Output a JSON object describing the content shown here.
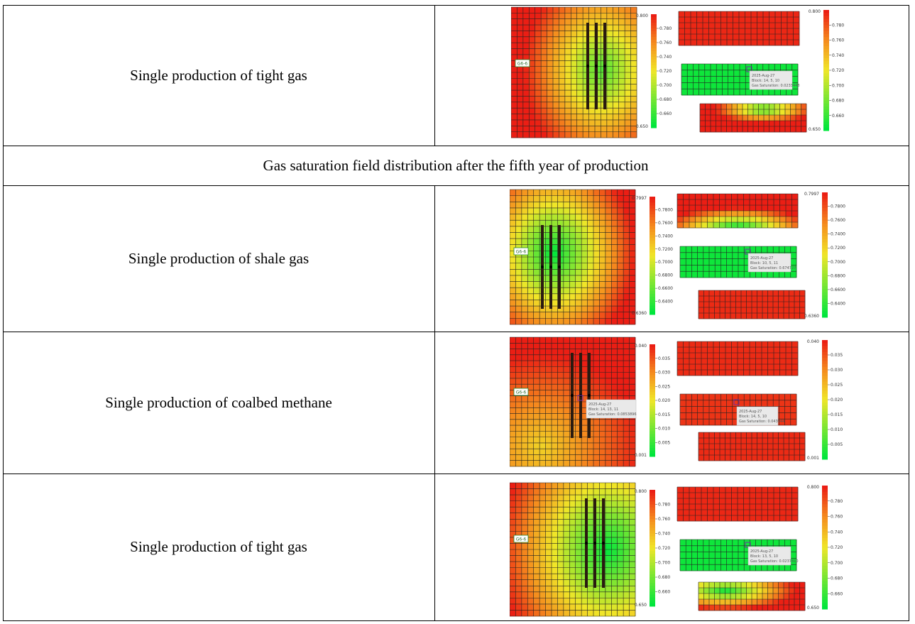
{
  "rows": [
    {
      "label": "Single production of tight gas",
      "panel": {
        "well_tag": "G6-6",
        "bar1": {
          "top": "0.800",
          "bottom": "0.650",
          "ticks": [
            "0.780",
            "0.760",
            "0.740",
            "0.720",
            "0.700",
            "0.680",
            "0.660"
          ]
        },
        "bar2": {
          "top": "0.800",
          "bottom": "0.650",
          "ticks": [
            "0.780",
            "0.760",
            "0.740",
            "0.720",
            "0.700",
            "0.680",
            "0.660"
          ]
        },
        "tooltip": [
          "2025-Aug-27",
          "Block: 14, 5, 10",
          "Gas Saturation: 0.0233448"
        ]
      }
    },
    {
      "label": "Single production of shale gas",
      "panel": {
        "well_tag": "G6-6",
        "bar1": {
          "top": "0.7997",
          "bottom": "0.6360",
          "ticks": [
            "0.7800",
            "0.7600",
            "0.7400",
            "0.7200",
            "0.7000",
            "0.6800",
            "0.6600",
            "0.6400"
          ]
        },
        "bar2": {
          "top": "0.7997",
          "bottom": "0.6360",
          "ticks": [
            "0.7800",
            "0.7600",
            "0.7400",
            "0.7200",
            "0.7000",
            "0.6800",
            "0.6600",
            "0.6400"
          ]
        },
        "tooltip": [
          "2025-Aug-27",
          "Block: 10, 5, 11",
          "Gas Saturation: 0.674727"
        ]
      }
    },
    {
      "label": "Single production of coalbed methane",
      "panel": {
        "well_tag": "G6-6",
        "bar1": {
          "top": "0.040",
          "bottom": "0.001",
          "ticks": [
            "0.035",
            "0.030",
            "0.025",
            "0.020",
            "0.015",
            "0.010",
            "0.005"
          ]
        },
        "bar2": {
          "top": "0.040",
          "bottom": "0.001",
          "ticks": [
            "0.035",
            "0.030",
            "0.025",
            "0.020",
            "0.015",
            "0.010",
            "0.005"
          ]
        },
        "tooltip": [
          "2025-Aug-27",
          "Block: 14, 13, 11",
          "Gas Saturation: 0.0853896"
        ],
        "tooltip2": [
          "2025-Aug-27",
          "Block: 14, 5, 10",
          "Gas Saturation: 0.043944"
        ]
      }
    },
    {
      "label": "Single production of tight gas",
      "panel": {
        "well_tag": "G6-6",
        "bar1": {
          "top": "0.800",
          "bottom": "0.650",
          "ticks": [
            "0.780",
            "0.760",
            "0.740",
            "0.720",
            "0.700",
            "0.680",
            "0.660"
          ]
        },
        "bar2": {
          "top": "0.800",
          "bottom": "0.650",
          "ticks": [
            "0.780",
            "0.760",
            "0.740",
            "0.720",
            "0.700",
            "0.680",
            "0.660"
          ]
        },
        "tooltip": [
          "2025-Aug-27",
          "Block: 13, 5, 10",
          "Gas Saturation: 0.0237810"
        ]
      }
    }
  ],
  "caption": "Gas saturation field distribution after the fifth year of production"
}
